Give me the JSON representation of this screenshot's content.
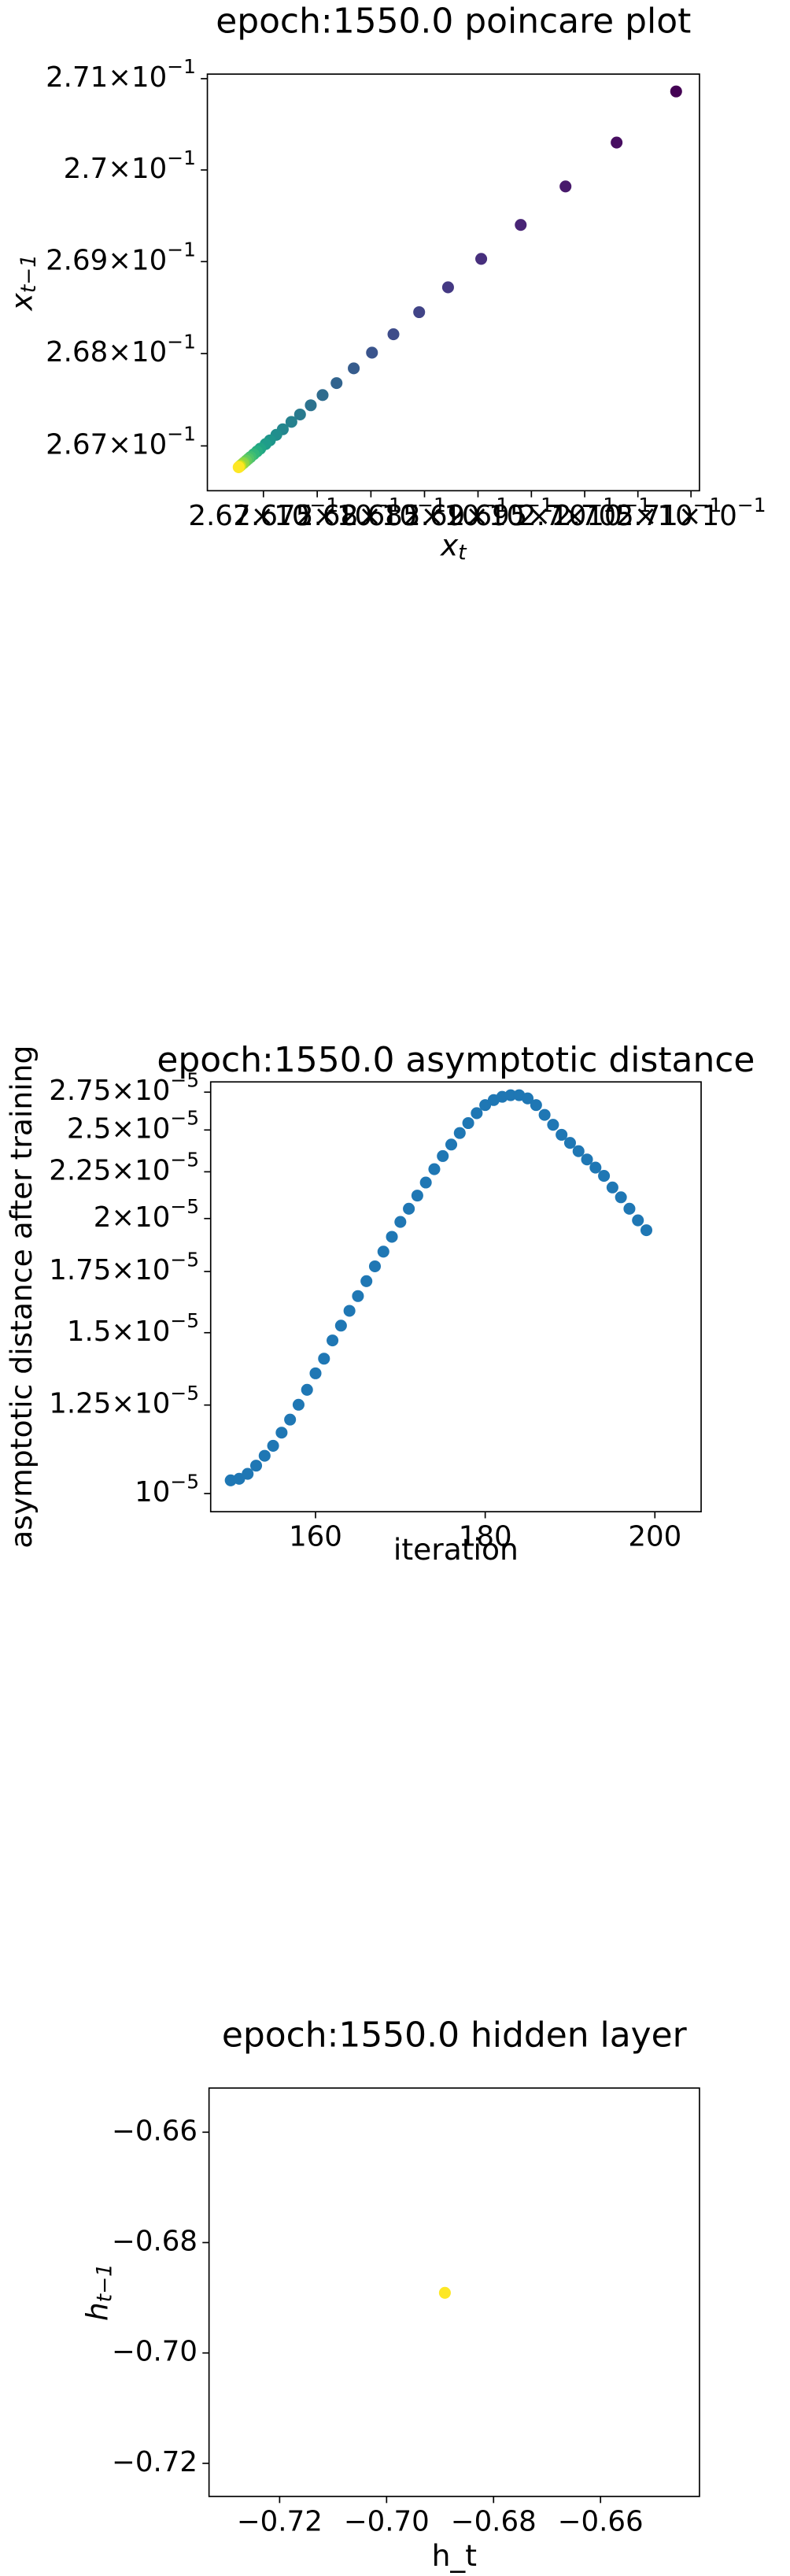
{
  "chart_data": [
    {
      "type": "scatter",
      "title": "epoch:1550.0 poincare plot",
      "xlabel": {
        "text": "x",
        "sub": "t"
      },
      "ylabel": {
        "text": "x",
        "sub": "t−1"
      },
      "xscale": "log",
      "yscale": "log",
      "xlim": [
        0.26648,
        0.27108
      ],
      "ylim": [
        0.266516,
        0.27105
      ],
      "xticks": [
        {
          "value": 0.267,
          "label": "2.67×10",
          "exp": "−1"
        },
        {
          "value": 0.2675,
          "label": "2.675×10",
          "exp": "−1"
        },
        {
          "value": 0.268,
          "label": "2.68×10",
          "exp": "−1"
        },
        {
          "value": 0.2685,
          "label": "2.685×10",
          "exp": "−1"
        },
        {
          "value": 0.269,
          "label": "2.69×10",
          "exp": "−1"
        },
        {
          "value": 0.2695,
          "label": "2.695×10",
          "exp": "−1"
        },
        {
          "value": 0.27,
          "label": "2.7×10",
          "exp": "−1"
        },
        {
          "value": 0.2705,
          "label": "2.705×10",
          "exp": "−1"
        },
        {
          "value": 0.271,
          "label": "2.71×10",
          "exp": "−1"
        }
      ],
      "yticks": [
        {
          "value": 0.267,
          "label": "2.67×10",
          "exp": "−1"
        },
        {
          "value": 0.268,
          "label": "2.68×10",
          "exp": "−1"
        },
        {
          "value": 0.269,
          "label": "2.69×10",
          "exp": "−1"
        },
        {
          "value": 0.27,
          "label": "2.7×10",
          "exp": "−1"
        },
        {
          "value": 0.271,
          "label": "2.71×10",
          "exp": "−1"
        }
      ],
      "x": [
        0.27086,
        0.2703,
        0.26982,
        0.2694,
        0.26903,
        0.26872,
        0.26845,
        0.26821,
        0.26801,
        0.26784,
        0.26768,
        0.26755,
        0.26744,
        0.26734,
        0.26726,
        0.26718,
        0.26712,
        0.26706,
        0.26702,
        0.26697,
        0.26694,
        0.26691,
        0.26688,
        0.26686,
        0.26684,
        0.26682,
        0.26681,
        0.26679,
        0.26678,
        0.26677
      ],
      "series": [
        {
          "values": [
            0.27086,
            0.2703,
            0.26982,
            0.2694,
            0.26903,
            0.26872,
            0.26845,
            0.26821,
            0.26801,
            0.26784,
            0.26768,
            0.26755,
            0.26744,
            0.26734,
            0.26726,
            0.26718,
            0.26712,
            0.26706,
            0.26702,
            0.26697,
            0.26694,
            0.26691,
            0.26688,
            0.26686,
            0.26684,
            0.26682,
            0.26681,
            0.26679,
            0.26678,
            0.26677
          ],
          "colors": [
            "#440154",
            "#470e61",
            "#481a6c",
            "#482475",
            "#472f7d",
            "#443983",
            "#414487",
            "#3e4c8a",
            "#3a548c",
            "#365c8d",
            "#32648e",
            "#2f6c8e",
            "#2c728e",
            "#297a8e",
            "#26818e",
            "#24868e",
            "#218e8d",
            "#1f958b",
            "#1f9d8a",
            "#21a585",
            "#27ad81",
            "#32b67a",
            "#40bd72",
            "#50c46a",
            "#63cb5f",
            "#77d153",
            "#8ed645",
            "#a5db36",
            "#d8e219",
            "#fde725"
          ]
        }
      ]
    },
    {
      "type": "scatter",
      "title": "epoch:1550.0 asymptotic distance",
      "xlabel": "iteration",
      "ylabel": "asymptotic distance after training",
      "yscale": "log",
      "xlim": [
        147.64,
        205.45
      ],
      "ylim": [
        9.554e-06,
        2.822e-05
      ],
      "xticks": [
        160,
        180,
        200
      ],
      "yticks": [
        {
          "value": 1e-05,
          "label": "10",
          "exp": "−5"
        },
        {
          "value": 1.25e-05,
          "label": "1.25×10",
          "exp": "−5"
        },
        {
          "value": 1.5e-05,
          "label": "1.5×10",
          "exp": "−5"
        },
        {
          "value": 1.75e-05,
          "label": "1.75×10",
          "exp": "−5"
        },
        {
          "value": 2e-05,
          "label": "2×10",
          "exp": "−5"
        },
        {
          "value": 2.25e-05,
          "label": "2.25×10",
          "exp": "−5"
        },
        {
          "value": 2.5e-05,
          "label": "2.5×10",
          "exp": "−5"
        },
        {
          "value": 2.75e-05,
          "label": "2.75×10",
          "exp": "−5"
        }
      ],
      "x": [
        150,
        151,
        152,
        153,
        154,
        155,
        156,
        157,
        158,
        159,
        160,
        161,
        162,
        163,
        164,
        165,
        166,
        167,
        168,
        169,
        170,
        171,
        172,
        173,
        174,
        175,
        176,
        177,
        178,
        179,
        180,
        181,
        182,
        183,
        184,
        185,
        186,
        187,
        188,
        189,
        190,
        191,
        192,
        193,
        194,
        195,
        196,
        197,
        198,
        199
      ],
      "series": [
        {
          "color": "#1f77b4",
          "values": [
            1.034e-05,
            1.038e-05,
            1.051e-05,
            1.073e-05,
            1.1e-05,
            1.128e-05,
            1.166e-05,
            1.205e-05,
            1.251e-05,
            1.299e-05,
            1.354e-05,
            1.405e-05,
            1.471e-05,
            1.527e-05,
            1.585e-05,
            1.645e-05,
            1.708e-05,
            1.773e-05,
            1.84e-05,
            1.91e-05,
            1.983e-05,
            2.05e-05,
            2.119e-05,
            2.19e-05,
            2.265e-05,
            2.341e-05,
            2.41e-05,
            2.481e-05,
            2.544e-05,
            2.608e-05,
            2.662e-05,
            2.696e-05,
            2.718e-05,
            2.729e-05,
            2.729e-05,
            2.707e-05,
            2.662e-05,
            2.597e-05,
            2.533e-05,
            2.47e-05,
            2.42e-05,
            2.37e-05,
            2.321e-05,
            2.274e-05,
            2.227e-05,
            2.163e-05,
            2.11e-05,
            2.05e-05,
            1.991e-05,
            1.942e-05
          ]
        }
      ]
    },
    {
      "type": "scatter",
      "title": "epoch:1550.0 hidden layer",
      "xlabel": "h_t",
      "ylabel": {
        "text": "h",
        "sub": "t−1"
      },
      "xlim": [
        -0.7332,
        -0.6415
      ],
      "ylim": [
        -0.726,
        -0.652
      ],
      "xticks": [
        {
          "value": -0.72,
          "label": "−0.72"
        },
        {
          "value": -0.7,
          "label": "−0.70"
        },
        {
          "value": -0.68,
          "label": "−0.68"
        },
        {
          "value": -0.66,
          "label": "−0.66"
        }
      ],
      "yticks": [
        {
          "value": -0.72,
          "label": "−0.72"
        },
        {
          "value": -0.7,
          "label": "−0.70"
        },
        {
          "value": -0.68,
          "label": "−0.68"
        },
        {
          "value": -0.66,
          "label": "−0.66"
        }
      ],
      "x": [
        -0.6891
      ],
      "series": [
        {
          "color": "#fde725",
          "values": [
            -0.6891
          ]
        }
      ]
    }
  ]
}
